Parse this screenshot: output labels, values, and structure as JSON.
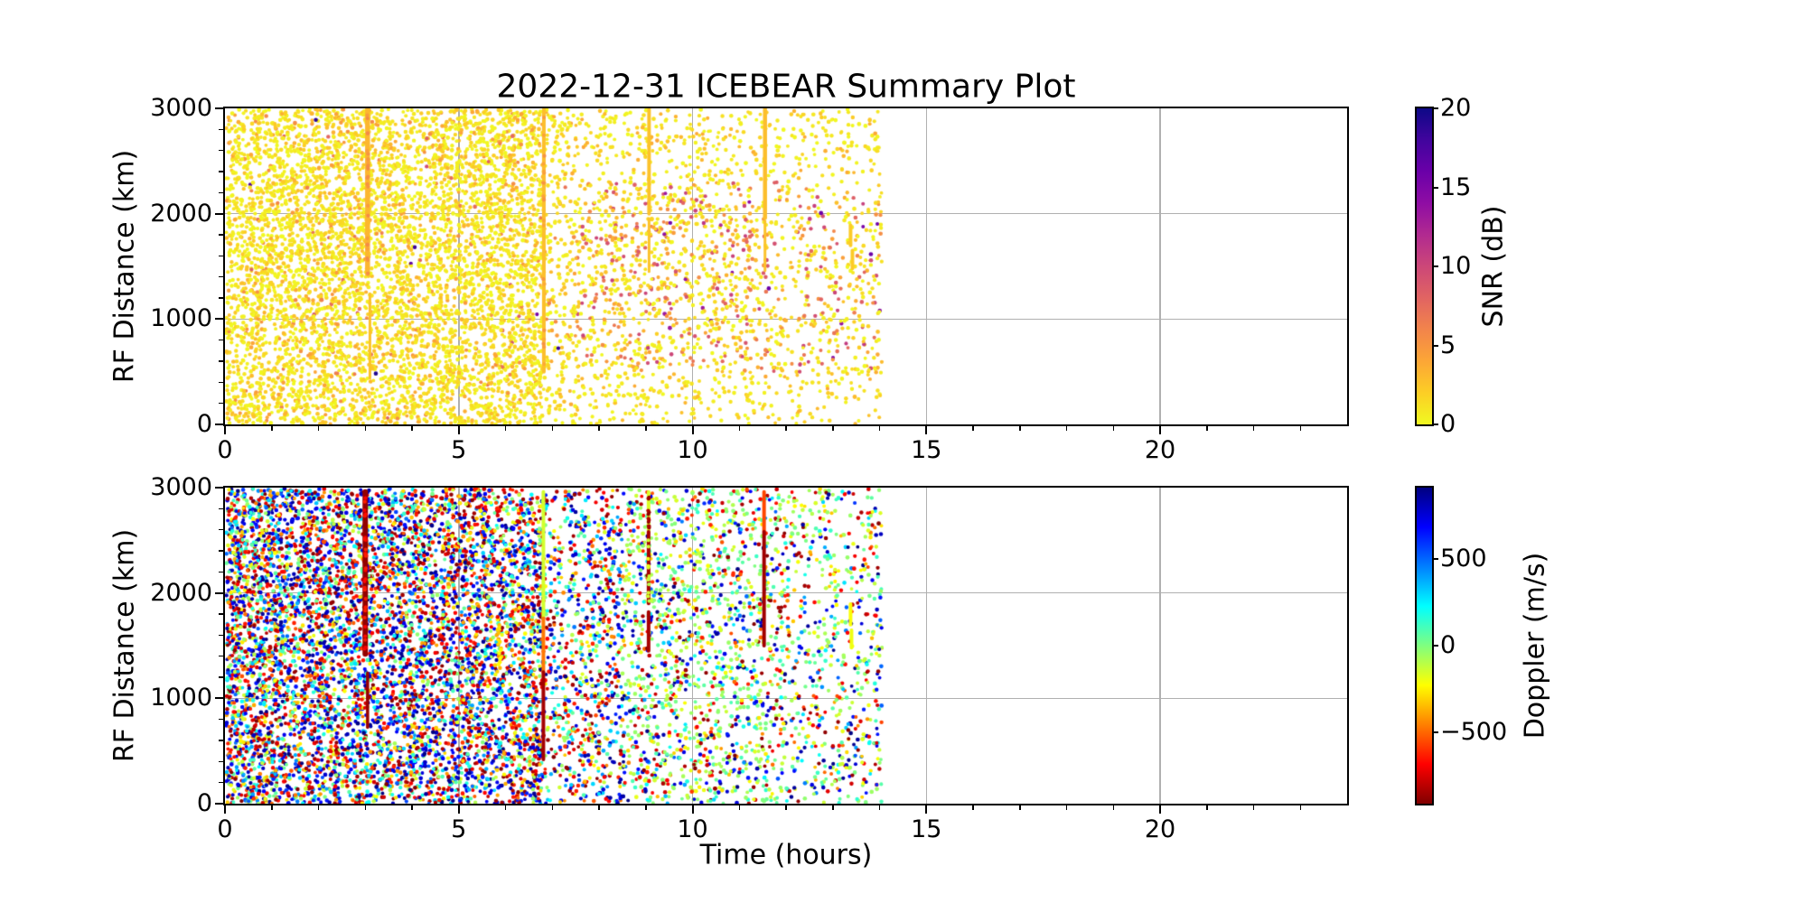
{
  "figure": {
    "background": "#ffffff",
    "grid_color": "#b0b0b0",
    "spine_color": "#000000",
    "text_color": "#000000"
  },
  "colormaps": {
    "plasma": [
      [
        0.0,
        13,
        8,
        135
      ],
      [
        0.1,
        65,
        4,
        157
      ],
      [
        0.2,
        106,
        0,
        168
      ],
      [
        0.3,
        143,
        13,
        164
      ],
      [
        0.4,
        177,
        42,
        144
      ],
      [
        0.5,
        204,
        71,
        120
      ],
      [
        0.6,
        225,
        100,
        98
      ],
      [
        0.7,
        242,
        132,
        75
      ],
      [
        0.8,
        252,
        166,
        54
      ],
      [
        0.9,
        252,
        206,
        37
      ],
      [
        1.0,
        240,
        249,
        33
      ]
    ],
    "jet": [
      [
        0.0,
        0,
        0,
        128
      ],
      [
        0.125,
        0,
        0,
        255
      ],
      [
        0.375,
        0,
        255,
        255
      ],
      [
        0.625,
        255,
        255,
        0
      ],
      [
        0.875,
        255,
        0,
        0
      ],
      [
        1.0,
        128,
        0,
        0
      ]
    ]
  },
  "chart_data": [
    {
      "id": "snr",
      "type": "scatter",
      "title": "2022-12-31 ICEBEAR Summary Plot",
      "xlabel": "",
      "ylabel": "RF Distance (km)",
      "xlim": [
        0,
        24
      ],
      "ylim": [
        0,
        3000
      ],
      "xticks": [
        0,
        5,
        10,
        15,
        20
      ],
      "xtick_labels": [
        "0",
        "5",
        "10",
        "15",
        "20"
      ],
      "xminor_step_hours": 1,
      "yticks": [
        0,
        1000,
        2000,
        3000
      ],
      "ytick_labels": [
        "0",
        "1000",
        "2000",
        "3000"
      ],
      "yminor_step_km": 200,
      "grid": true,
      "colorbar": {
        "label": "SNR (dB)",
        "lim": [
          0,
          20
        ],
        "ticks": [
          20,
          15,
          10,
          5,
          0
        ],
        "tick_labels": [
          "20",
          "15",
          "10",
          "5",
          "0"
        ],
        "colormap": "plasma_reversed"
      },
      "data_time_extent_hours": [
        0.03,
        14.05
      ],
      "n_points": 8000,
      "point_radius_px": 2.15,
      "snr_exponential_mean_db": 1.4,
      "enhanced_snr_after_hour": 7.5,
      "density_segments": [
        {
          "t": [
            0.03,
            6.8
          ],
          "w": 1.0
        },
        {
          "t": [
            6.8,
            9.1
          ],
          "w": 0.45
        },
        {
          "t": [
            9.1,
            11.6
          ],
          "w": 0.4
        },
        {
          "t": [
            11.6,
            14.05
          ],
          "w": 0.28
        }
      ],
      "streaks": [
        {
          "x": 3.05,
          "km": [
            1430,
            2990
          ],
          "w": 5.5,
          "value": 3.2,
          "mottle": {
            "value": 5.0,
            "n": 26
          }
        },
        {
          "x": 3.1,
          "km": [
            440,
            1240
          ],
          "w": 3.0,
          "value": 2.6
        },
        {
          "x": 6.82,
          "km": [
            500,
            2990
          ],
          "w": 4.0,
          "value": 2.8,
          "mottle": {
            "value": 4.5,
            "n": 20
          }
        },
        {
          "x": 9.07,
          "km": [
            2000,
            2990
          ],
          "w": 4.0,
          "value": 2.6
        },
        {
          "x": 9.07,
          "km": [
            1450,
            1950
          ],
          "w": 3.0,
          "value": 2.6
        },
        {
          "x": 11.55,
          "km": [
            1960,
            2990
          ],
          "w": 4.5,
          "value": 2.8
        },
        {
          "x": 11.55,
          "km": [
            1460,
            1930
          ],
          "w": 3.0,
          "value": 2.6
        },
        {
          "x": 13.38,
          "km": [
            1700,
            1890
          ],
          "w": 4.0,
          "value": 2.2
        },
        {
          "x": 13.42,
          "km": [
            1480,
            1650
          ],
          "w": 4.0,
          "value": 2.2
        }
      ]
    },
    {
      "id": "doppler",
      "type": "scatter",
      "title": "",
      "xlabel": "Time (hours)",
      "ylabel": "RF Distance (km)",
      "xlim": [
        0,
        24
      ],
      "ylim": [
        0,
        3000
      ],
      "xticks": [
        0,
        5,
        10,
        15,
        20
      ],
      "xtick_labels": [
        "0",
        "5",
        "10",
        "15",
        "20"
      ],
      "xminor_step_hours": 1,
      "yticks": [
        0,
        1000,
        2000,
        3000
      ],
      "ytick_labels": [
        "0",
        "1000",
        "2000",
        "3000"
      ],
      "yminor_step_km": 200,
      "grid": true,
      "colorbar": {
        "label": "Doppler (m/s)",
        "lim": [
          -915,
          915
        ],
        "ticks": [
          500,
          0,
          -500
        ],
        "tick_labels": [
          "500",
          "0",
          "−500"
        ],
        "colormap": "jet_reversed"
      },
      "data_time_extent_hours": [
        0.03,
        14.06
      ],
      "n_points": 9500,
      "point_radius_px": 2.15,
      "green_near_zero_after_hour": 8.5,
      "density_segments": [
        {
          "t": [
            0.03,
            1.2
          ],
          "w": 1.25
        },
        {
          "t": [
            1.2,
            6.8
          ],
          "w": 1.0
        },
        {
          "t": [
            6.8,
            9.1
          ],
          "w": 0.5
        },
        {
          "t": [
            9.1,
            11.6
          ],
          "w": 0.45
        },
        {
          "t": [
            11.6,
            14.06
          ],
          "w": 0.33
        }
      ],
      "streaks": [
        {
          "x": 3.0,
          "km": [
            1420,
            2960
          ],
          "w": 6.0,
          "value": -880,
          "mottle": {
            "value": -650,
            "n": 30
          }
        },
        {
          "x": 3.05,
          "km": [
            725,
            1240
          ],
          "w": 3.5,
          "value": -870
        },
        {
          "x": 5.87,
          "km": [
            1250,
            1700
          ],
          "w": 7.0,
          "value": -300,
          "loose": true
        },
        {
          "x": 6.81,
          "km": [
            1760,
            2960
          ],
          "w": 4.0,
          "value": -150
        },
        {
          "x": 6.81,
          "km": [
            1250,
            1760
          ],
          "w": 4.0,
          "value": -470
        },
        {
          "x": 6.81,
          "km": [
            420,
            1250
          ],
          "w": 4.0,
          "value": -850
        },
        {
          "x": 9.06,
          "km": [
            2580,
            2960
          ],
          "w": 4.0,
          "value": -165,
          "mottle": {
            "value": -850,
            "n": 12
          }
        },
        {
          "x": 9.06,
          "km": [
            1900,
            2580
          ],
          "w": 4.0,
          "value": -845,
          "mottle": {
            "value": -150,
            "n": 14
          }
        },
        {
          "x": 9.06,
          "km": [
            1450,
            1820
          ],
          "w": 4.0,
          "value": -845
        },
        {
          "x": 11.53,
          "km": [
            2580,
            2960
          ],
          "w": 4.0,
          "value": -560
        },
        {
          "x": 11.53,
          "km": [
            1500,
            2580
          ],
          "w": 4.0,
          "value": -855
        },
        {
          "x": 13.38,
          "km": [
            1700,
            1895
          ],
          "w": 4.0,
          "value": -220
        },
        {
          "x": 13.4,
          "km": [
            1480,
            1645
          ],
          "w": 4.0,
          "value": -200
        }
      ]
    }
  ]
}
